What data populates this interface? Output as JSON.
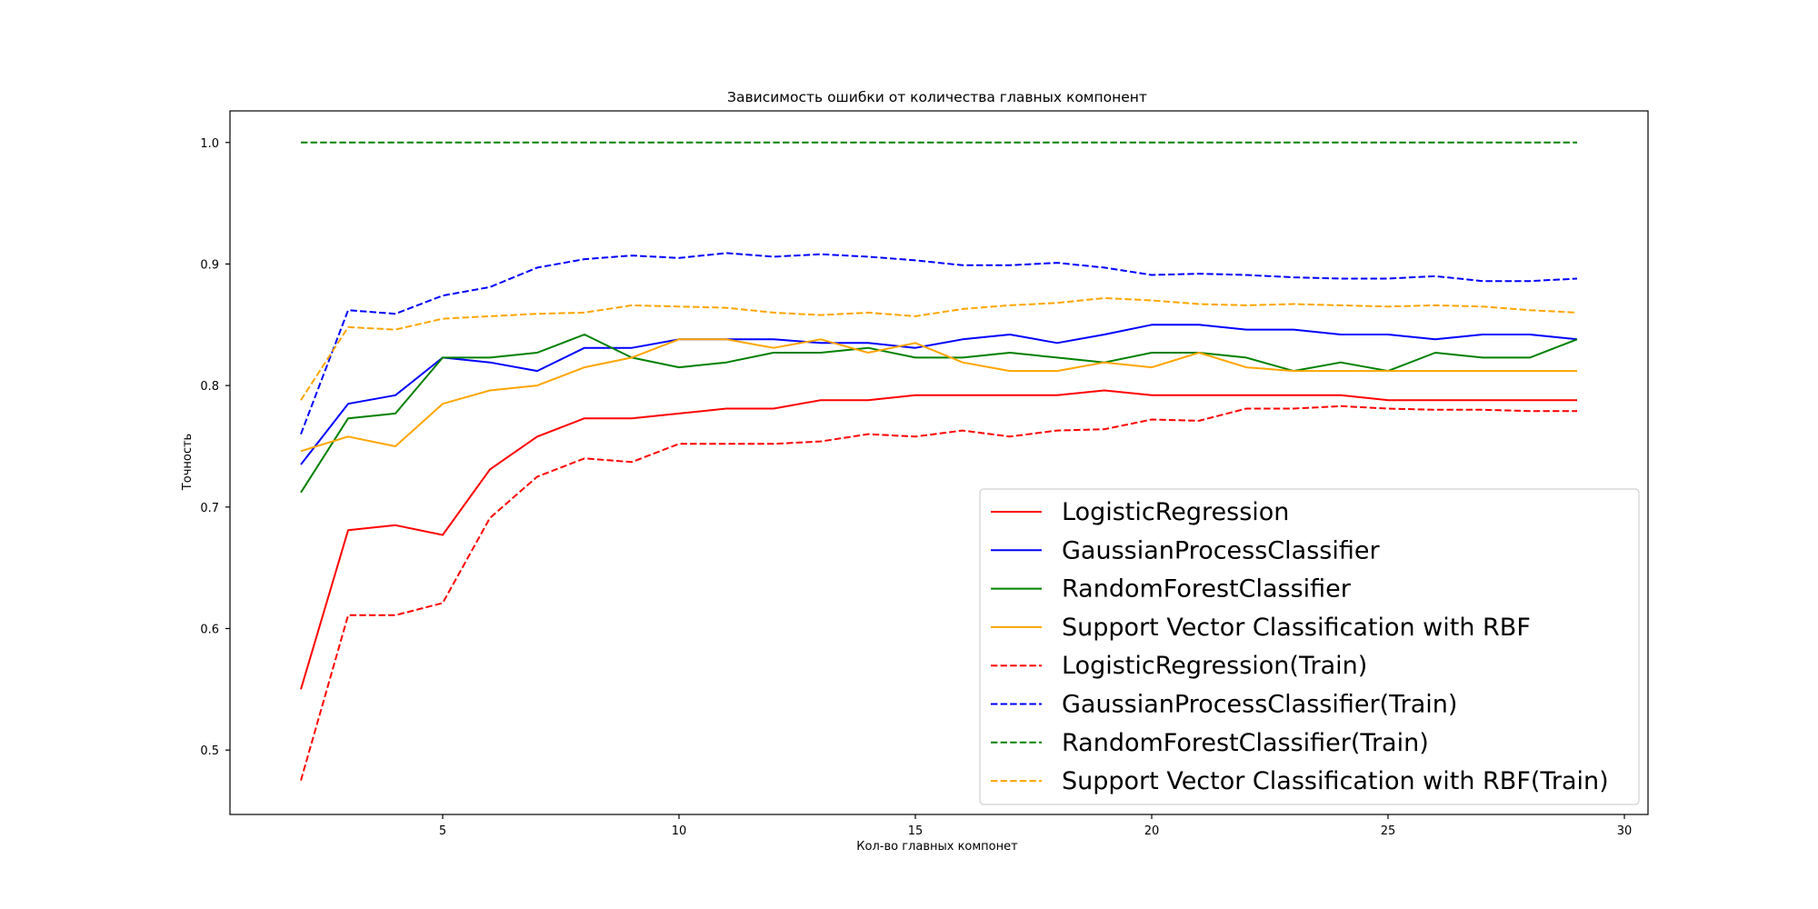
{
  "chart_data": {
    "type": "line",
    "title": "Зависимость ошибки от количества главных компонент",
    "xlabel": "Кол-во главных компонет",
    "ylabel": "Точность",
    "xlim": [
      0.5,
      30.5
    ],
    "ylim": [
      0.447,
      1.026
    ],
    "xticks": [
      5,
      10,
      15,
      20,
      25,
      30
    ],
    "yticks": [
      0.5,
      0.6,
      0.7,
      0.8,
      0.9,
      1.0
    ],
    "grid": false,
    "legend_position": "lower-right",
    "x": [
      2,
      3,
      4,
      5,
      6,
      7,
      8,
      9,
      10,
      11,
      12,
      13,
      14,
      15,
      16,
      17,
      18,
      19,
      20,
      21,
      22,
      23,
      24,
      25,
      26,
      27,
      28,
      29
    ],
    "series": [
      {
        "name": "LogisticRegression",
        "color": "#ff0000",
        "dash": false,
        "values": [
          0.55,
          0.681,
          0.685,
          0.677,
          0.731,
          0.758,
          0.773,
          0.773,
          0.777,
          0.781,
          0.781,
          0.788,
          0.788,
          0.792,
          0.792,
          0.792,
          0.792,
          0.796,
          0.792,
          0.792,
          0.792,
          0.792,
          0.792,
          0.788,
          0.788,
          0.788,
          0.788,
          0.788
        ]
      },
      {
        "name": "GaussianProcessClassifier",
        "color": "#0000ff",
        "dash": false,
        "values": [
          0.735,
          0.785,
          0.792,
          0.823,
          0.819,
          0.812,
          0.831,
          0.831,
          0.838,
          0.838,
          0.838,
          0.835,
          0.835,
          0.831,
          0.838,
          0.842,
          0.835,
          0.842,
          0.85,
          0.85,
          0.846,
          0.846,
          0.842,
          0.842,
          0.838,
          0.842,
          0.842,
          0.838
        ]
      },
      {
        "name": "RandomForestClassifier",
        "color": "#008000",
        "dash": false,
        "values": [
          0.712,
          0.773,
          0.777,
          0.823,
          0.823,
          0.827,
          0.842,
          0.823,
          0.815,
          0.819,
          0.827,
          0.827,
          0.831,
          0.823,
          0.823,
          0.827,
          0.823,
          0.819,
          0.827,
          0.827,
          0.823,
          0.812,
          0.819,
          0.812,
          0.827,
          0.823,
          0.823,
          0.838
        ]
      },
      {
        "name": "Support Vector Classification with RBF",
        "color": "#ffa500",
        "dash": false,
        "values": [
          0.746,
          0.758,
          0.75,
          0.785,
          0.796,
          0.8,
          0.815,
          0.823,
          0.838,
          0.838,
          0.831,
          0.838,
          0.827,
          0.835,
          0.819,
          0.812,
          0.812,
          0.819,
          0.815,
          0.827,
          0.815,
          0.812,
          0.812,
          0.812,
          0.812,
          0.812,
          0.812,
          0.812
        ]
      },
      {
        "name": "LogisticRegression(Train)",
        "color": "#ff0000",
        "dash": true,
        "values": [
          0.475,
          0.611,
          0.611,
          0.621,
          0.691,
          0.725,
          0.74,
          0.737,
          0.752,
          0.752,
          0.752,
          0.754,
          0.76,
          0.758,
          0.763,
          0.758,
          0.763,
          0.764,
          0.772,
          0.771,
          0.781,
          0.781,
          0.783,
          0.781,
          0.78,
          0.78,
          0.779,
          0.779
        ]
      },
      {
        "name": "GaussianProcessClassifier(Train)",
        "color": "#0000ff",
        "dash": true,
        "values": [
          0.76,
          0.862,
          0.859,
          0.874,
          0.881,
          0.897,
          0.904,
          0.907,
          0.905,
          0.909,
          0.906,
          0.908,
          0.906,
          0.903,
          0.899,
          0.899,
          0.901,
          0.897,
          0.891,
          0.892,
          0.891,
          0.889,
          0.888,
          0.888,
          0.89,
          0.886,
          0.886,
          0.888
        ]
      },
      {
        "name": "RandomForestClassifier(Train)",
        "color": "#008000",
        "dash": true,
        "values": [
          1.0,
          1.0,
          1.0,
          1.0,
          1.0,
          1.0,
          1.0,
          1.0,
          1.0,
          1.0,
          1.0,
          1.0,
          1.0,
          1.0,
          1.0,
          1.0,
          1.0,
          1.0,
          1.0,
          1.0,
          1.0,
          1.0,
          1.0,
          1.0,
          1.0,
          1.0,
          1.0,
          1.0
        ]
      },
      {
        "name": "Support Vector Classification with RBF(Train)",
        "color": "#ffa500",
        "dash": true,
        "values": [
          0.788,
          0.848,
          0.846,
          0.855,
          0.857,
          0.859,
          0.86,
          0.866,
          0.865,
          0.864,
          0.86,
          0.858,
          0.86,
          0.857,
          0.863,
          0.866,
          0.868,
          0.872,
          0.87,
          0.867,
          0.866,
          0.867,
          0.866,
          0.865,
          0.866,
          0.865,
          0.862,
          0.86
        ]
      }
    ]
  }
}
